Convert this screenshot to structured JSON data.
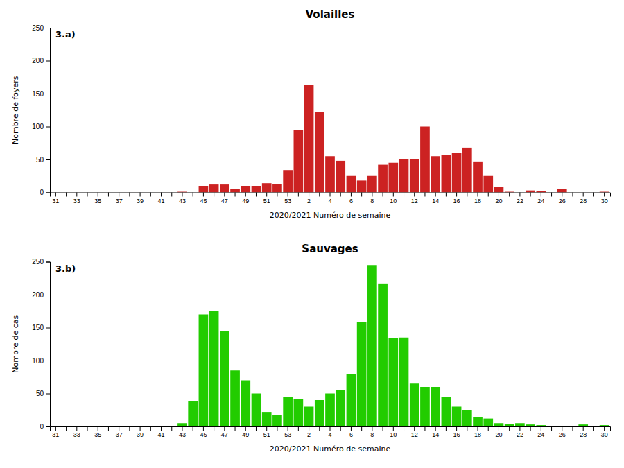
{
  "chart_data": [
    {
      "type": "bar",
      "title": "Volailles",
      "annotation": "3.a)",
      "xlabel": "2020/2021 Numéro de semaine",
      "ylabel": "Nombre de foyers",
      "categories": [
        "31",
        null,
        "33",
        null,
        "35",
        null,
        "37",
        null,
        "39",
        null,
        "41",
        null,
        "43",
        null,
        "45",
        null,
        "47",
        null,
        "49",
        null,
        "51",
        null,
        "53",
        null,
        "2",
        null,
        "4",
        null,
        "6",
        null,
        "8",
        null,
        "10",
        null,
        "12",
        null,
        "14",
        null,
        "16",
        null,
        "18",
        null,
        "20",
        null,
        "22",
        null,
        "24",
        null,
        "26",
        null,
        "28",
        null,
        "30"
      ],
      "values": [
        0,
        0,
        0,
        0,
        0,
        0,
        0,
        0,
        0,
        0,
        0,
        0,
        1,
        0,
        10,
        12,
        12,
        5,
        10,
        10,
        14,
        13,
        34,
        95,
        163,
        122,
        55,
        48,
        25,
        18,
        25,
        42,
        45,
        50,
        51,
        100,
        55,
        57,
        60,
        68,
        47,
        25,
        8,
        1,
        0,
        3,
        2,
        0,
        5,
        0,
        0,
        0,
        1
      ],
      "color": "#cc2222",
      "ylim": [
        0,
        250
      ],
      "yticks": [
        0,
        50,
        100,
        150,
        200,
        250
      ],
      "grid": false
    },
    {
      "type": "bar",
      "title": "Sauvages",
      "annotation": "3.b)",
      "xlabel": "2020/2021 Numéro de semaine",
      "ylabel": "Nombre de cas",
      "categories": [
        "31",
        null,
        "33",
        null,
        "35",
        null,
        "37",
        null,
        "39",
        null,
        "41",
        null,
        "43",
        null,
        "45",
        null,
        "47",
        null,
        "49",
        null,
        "51",
        null,
        "53",
        null,
        "2",
        null,
        "4",
        null,
        "6",
        null,
        "8",
        null,
        "10",
        null,
        "12",
        null,
        "14",
        null,
        "16",
        null,
        "18",
        null,
        "20",
        null,
        "22",
        null,
        "24",
        null,
        "26",
        null,
        "28",
        null,
        "30"
      ],
      "values": [
        0,
        0,
        0,
        0,
        0,
        0,
        0,
        0,
        0,
        0,
        0,
        0,
        5,
        38,
        170,
        175,
        145,
        85,
        70,
        50,
        22,
        17,
        45,
        42,
        30,
        40,
        50,
        55,
        80,
        158,
        245,
        217,
        134,
        135,
        65,
        60,
        60,
        45,
        30,
        25,
        14,
        12,
        5,
        4,
        5,
        3,
        2,
        0,
        0,
        0,
        3,
        0,
        2
      ],
      "color": "#22cc00",
      "ylim": [
        0,
        250
      ],
      "yticks": [
        0,
        50,
        100,
        150,
        200,
        250
      ],
      "grid": false
    }
  ]
}
